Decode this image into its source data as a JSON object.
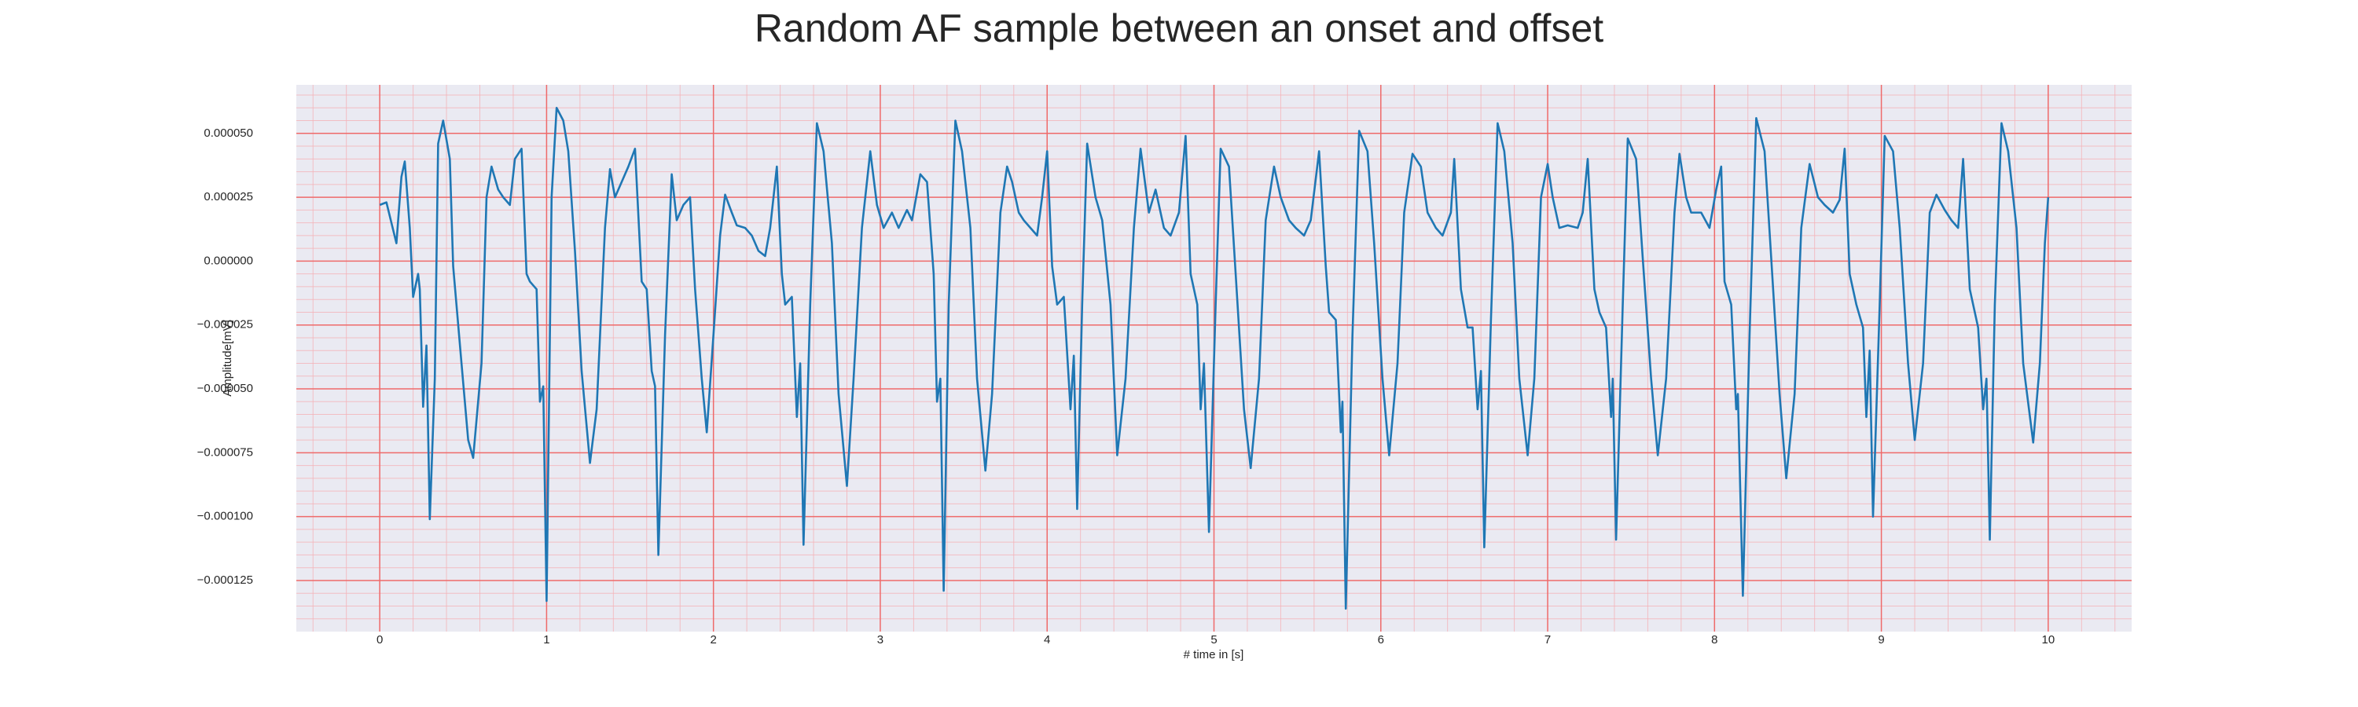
{
  "chart_data": {
    "type": "line",
    "title": "Random AF sample between an onset and offset",
    "xlabel": "# time in [s]",
    "ylabel": "Amplitude[mV]",
    "color": "#1f77b4",
    "grid": true,
    "minor_divisions": 5,
    "xlim": [
      -0.5,
      10.5
    ],
    "ylim": [
      -0.000145,
      6.9e-05
    ],
    "xticks": [
      0,
      1,
      2,
      3,
      4,
      5,
      6,
      7,
      8,
      9,
      10
    ],
    "yticks": [
      {
        "value": 5e-05,
        "label": "0.000050"
      },
      {
        "value": 2.5e-05,
        "label": "0.000025"
      },
      {
        "value": 0,
        "label": "0.000000"
      },
      {
        "value": -2.5e-05,
        "label": "−0.000025"
      },
      {
        "value": -5e-05,
        "label": "−0.000050"
      },
      {
        "value": -7.5e-05,
        "label": "−0.000075"
      },
      {
        "value": -0.0001,
        "label": "−0.000100"
      },
      {
        "value": -0.000125,
        "label": "−0.000125"
      }
    ],
    "x": [
      0.0,
      0.04,
      0.07,
      0.1,
      0.13,
      0.15,
      0.18,
      0.2,
      0.23,
      0.24,
      0.26,
      0.28,
      0.3,
      0.33,
      0.35,
      0.38,
      0.42,
      0.44,
      0.49,
      0.53,
      0.56,
      0.61,
      0.64,
      0.67,
      0.71,
      0.74,
      0.78,
      0.81,
      0.85,
      0.88,
      0.9,
      0.94,
      0.96,
      0.98,
      1.0,
      1.03,
      1.06,
      1.1,
      1.13,
      1.17,
      1.21,
      1.26,
      1.3,
      1.35,
      1.38,
      1.41,
      1.45,
      1.49,
      1.53,
      1.57,
      1.6,
      1.63,
      1.65,
      1.67,
      1.71,
      1.75,
      1.78,
      1.82,
      1.86,
      1.89,
      1.93,
      1.96,
      2.0,
      2.04,
      2.07,
      2.11,
      2.14,
      2.19,
      2.23,
      2.27,
      2.31,
      2.34,
      2.38,
      2.41,
      2.43,
      2.47,
      2.5,
      2.52,
      2.54,
      2.58,
      2.62,
      2.66,
      2.71,
      2.75,
      2.8,
      2.84,
      2.89,
      2.94,
      2.98,
      3.02,
      3.07,
      3.11,
      3.16,
      3.19,
      3.24,
      3.28,
      3.32,
      3.34,
      3.36,
      3.38,
      3.41,
      3.45,
      3.49,
      3.54,
      3.58,
      3.63,
      3.67,
      3.72,
      3.76,
      3.79,
      3.83,
      3.86,
      3.9,
      3.94,
      3.97,
      4.0,
      4.03,
      4.06,
      4.1,
      4.14,
      4.16,
      4.18,
      4.21,
      4.24,
      4.29,
      4.33,
      4.38,
      4.42,
      4.47,
      4.52,
      4.56,
      4.61,
      4.65,
      4.7,
      4.74,
      4.79,
      4.83,
      4.86,
      4.9,
      4.92,
      4.94,
      4.97,
      5.01,
      5.04,
      5.09,
      5.13,
      5.18,
      5.22,
      5.27,
      5.31,
      5.36,
      5.4,
      5.45,
      5.49,
      5.54,
      5.58,
      5.63,
      5.67,
      5.69,
      5.73,
      5.76,
      5.77,
      5.79,
      5.83,
      5.87,
      5.92,
      5.96,
      6.01,
      6.05,
      6.1,
      6.14,
      6.19,
      6.24,
      6.28,
      6.33,
      6.37,
      6.42,
      6.44,
      6.48,
      6.52,
      6.55,
      6.58,
      6.6,
      6.62,
      6.66,
      6.7,
      6.74,
      6.79,
      6.83,
      6.88,
      6.92,
      6.96,
      7.0,
      7.03,
      7.07,
      7.12,
      7.18,
      7.21,
      7.24,
      7.28,
      7.31,
      7.35,
      7.38,
      7.39,
      7.41,
      7.45,
      7.48,
      7.53,
      7.57,
      7.62,
      7.66,
      7.71,
      7.76,
      7.79,
      7.83,
      7.86,
      7.92,
      7.97,
      8.01,
      8.04,
      8.06,
      8.1,
      8.13,
      8.14,
      8.17,
      8.21,
      8.25,
      8.3,
      8.34,
      8.39,
      8.43,
      8.48,
      8.52,
      8.57,
      8.62,
      8.66,
      8.71,
      8.75,
      8.78,
      8.81,
      8.85,
      8.89,
      8.91,
      8.93,
      8.95,
      8.99,
      9.02,
      9.07,
      9.11,
      9.16,
      9.2,
      9.25,
      9.29,
      9.33,
      9.38,
      9.42,
      9.46,
      9.49,
      9.53,
      9.56,
      9.58,
      9.61,
      9.63,
      9.65,
      9.68,
      9.72,
      9.76,
      9.81,
      9.85,
      9.91,
      9.95,
      9.98,
      10.0
    ],
    "values": [
      2.2e-05,
      2.3e-05,
      1.5e-05,
      7e-06,
      3.3e-05,
      3.9e-05,
      1.3e-05,
      -1.4e-05,
      -5e-06,
      -1.1e-05,
      -5.7e-05,
      -3.3e-05,
      -0.000101,
      -4.6e-05,
      4.6e-05,
      5.5e-05,
      4e-05,
      -2e-06,
      -4e-05,
      -7e-05,
      -7.7e-05,
      -4e-05,
      2.5e-05,
      3.7e-05,
      2.8e-05,
      2.5e-05,
      2.2e-05,
      4e-05,
      4.4e-05,
      -5e-06,
      -8e-06,
      -1.1e-05,
      -5.5e-05,
      -4.9e-05,
      -0.000133,
      2.5e-05,
      6e-05,
      5.5e-05,
      4.3e-05,
      4e-06,
      -4.3e-05,
      -7.9e-05,
      -5.8e-05,
      1.3e-05,
      3.6e-05,
      2.5e-05,
      3.1e-05,
      3.7e-05,
      4.4e-05,
      -8e-06,
      -1.1e-05,
      -4.3e-05,
      -4.9e-05,
      -0.000115,
      -2.9e-05,
      3.4e-05,
      1.6e-05,
      2.2e-05,
      2.5e-05,
      -1.1e-05,
      -4.6e-05,
      -6.7e-05,
      -2.9e-05,
      1e-05,
      2.6e-05,
      1.9e-05,
      1.4e-05,
      1.3e-05,
      1e-05,
      4e-06,
      2e-06,
      1.3e-05,
      3.7e-05,
      -5e-06,
      -1.7e-05,
      -1.4e-05,
      -6.1e-05,
      -4e-05,
      -0.000111,
      -1.7e-05,
      5.4e-05,
      4.3e-05,
      7e-06,
      -5.2e-05,
      -8.8e-05,
      -4.6e-05,
      1.3e-05,
      4.3e-05,
      2.2e-05,
      1.3e-05,
      1.9e-05,
      1.3e-05,
      2e-05,
      1.6e-05,
      3.4e-05,
      3.1e-05,
      -5e-06,
      -5.5e-05,
      -4.6e-05,
      -0.000129,
      -1.7e-05,
      5.5e-05,
      4.3e-05,
      1.3e-05,
      -4.6e-05,
      -8.2e-05,
      -5.2e-05,
      1.9e-05,
      3.7e-05,
      3.1e-05,
      1.9e-05,
      1.6e-05,
      1.3e-05,
      1e-05,
      2.5e-05,
      4.3e-05,
      -2e-06,
      -1.7e-05,
      -1.4e-05,
      -5.8e-05,
      -3.7e-05,
      -9.7e-05,
      -1.7e-05,
      4.6e-05,
      2.5e-05,
      1.6e-05,
      -1.7e-05,
      -7.6e-05,
      -4.6e-05,
      1.3e-05,
      4.4e-05,
      1.9e-05,
      2.8e-05,
      1.3e-05,
      1e-05,
      1.9e-05,
      4.9e-05,
      -5e-06,
      -1.7e-05,
      -5.8e-05,
      -4e-05,
      -0.000106,
      -1.7e-05,
      4.4e-05,
      3.7e-05,
      -5e-06,
      -5.8e-05,
      -8.1e-05,
      -4.6e-05,
      1.6e-05,
      3.7e-05,
      2.5e-05,
      1.6e-05,
      1.3e-05,
      1e-05,
      1.6e-05,
      4.3e-05,
      -2e-06,
      -2e-05,
      -2.3e-05,
      -6.7e-05,
      -5.5e-05,
      -0.000136,
      -2.9e-05,
      5.1e-05,
      4.3e-05,
      7e-06,
      -4.6e-05,
      -7.6e-05,
      -4e-05,
      1.9e-05,
      4.2e-05,
      3.7e-05,
      1.9e-05,
      1.3e-05,
      1e-05,
      1.9e-05,
      4e-05,
      -1.1e-05,
      -2.6e-05,
      -2.6e-05,
      -5.8e-05,
      -4.3e-05,
      -0.000112,
      -2.3e-05,
      5.4e-05,
      4.3e-05,
      7e-06,
      -4.6e-05,
      -7.6e-05,
      -4.6e-05,
      2.5e-05,
      3.8e-05,
      2.5e-05,
      1.3e-05,
      1.4e-05,
      1.3e-05,
      1.9e-05,
      4e-05,
      -1.1e-05,
      -2e-05,
      -2.6e-05,
      -6.1e-05,
      -4.6e-05,
      -0.000109,
      -1.7e-05,
      4.8e-05,
      4e-05,
      1e-06,
      -4.6e-05,
      -7.6e-05,
      -4.6e-05,
      1.9e-05,
      4.2e-05,
      2.5e-05,
      1.9e-05,
      1.9e-05,
      1.3e-05,
      2.8e-05,
      3.7e-05,
      -8e-06,
      -1.7e-05,
      -5.8e-05,
      -5.2e-05,
      -0.000131,
      -2.9e-05,
      5.6e-05,
      4.3e-05,
      1e-06,
      -5.2e-05,
      -8.5e-05,
      -5.2e-05,
      1.3e-05,
      3.8e-05,
      2.5e-05,
      2.2e-05,
      1.9e-05,
      2.4e-05,
      4.4e-05,
      -5e-06,
      -1.7e-05,
      -2.6e-05,
      -6.1e-05,
      -3.5e-05,
      -0.0001,
      -1.7e-05,
      4.9e-05,
      4.3e-05,
      1.3e-05,
      -4e-05,
      -7e-05,
      -4e-05,
      1.9e-05,
      2.6e-05,
      2e-05,
      1.6e-05,
      1.3e-05,
      4e-05,
      -1.1e-05,
      -2e-05,
      -2.6e-05,
      -5.8e-05,
      -4.6e-05,
      -0.000109,
      -1.7e-05,
      5.4e-05,
      4.3e-05,
      1.3e-05,
      -4e-05,
      -7.1e-05,
      -4e-05,
      7e-06,
      2.5e-05
    ]
  }
}
